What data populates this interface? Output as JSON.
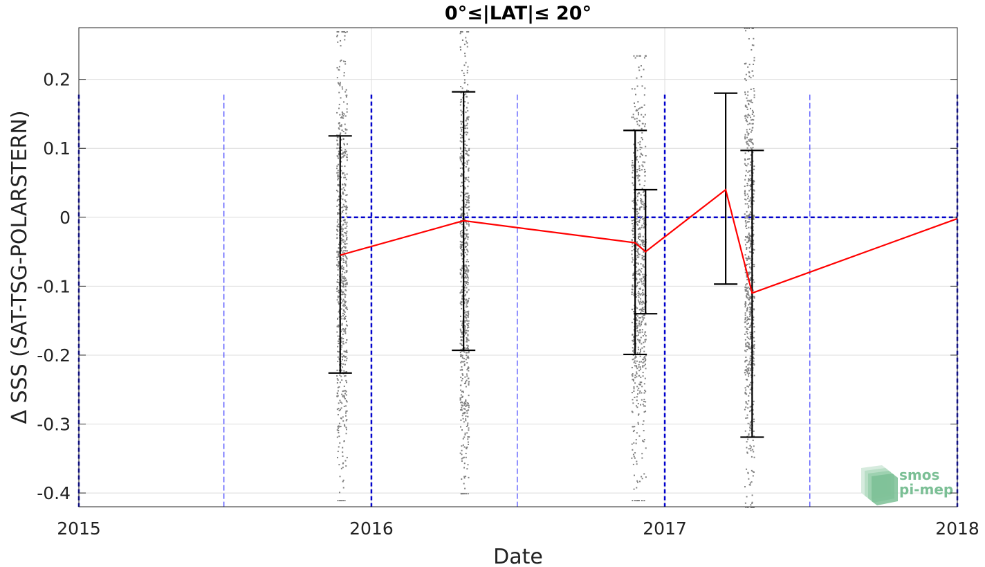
{
  "chart_data": {
    "type": "scatter",
    "title": "0°≤|LAT|≤ 20°",
    "xlabel": "Date",
    "ylabel": "Δ SSS (SAT-TSG-POLARSTERN)",
    "xlim": [
      "2015-01-01",
      "2018-01-01"
    ],
    "ylim": [
      -0.42,
      0.275
    ],
    "x_ticks": [
      "2015",
      "2016",
      "2017",
      "2018"
    ],
    "y_ticks": [
      "0.2",
      "0.1",
      "0",
      "-0.1",
      "-0.2",
      "-0.3",
      "-0.4"
    ],
    "grid": true,
    "mean_line": {
      "color": "#ff0000",
      "points": [
        {
          "x": "2015-11-23",
          "y": -0.055
        },
        {
          "x": "2016-04-25",
          "y": -0.005
        },
        {
          "x": "2016-11-25",
          "y": -0.037
        },
        {
          "x": "2016-12-08",
          "y": -0.05
        },
        {
          "x": "2017-03-18",
          "y": 0.04
        },
        {
          "x": "2017-04-20",
          "y": -0.11
        },
        {
          "x": "2018-01-01",
          "y": -0.002
        }
      ]
    },
    "error_bars": {
      "color": "#000000",
      "bars": [
        {
          "x": "2015-11-23",
          "low": -0.226,
          "high": 0.118
        },
        {
          "x": "2016-04-25",
          "low": -0.193,
          "high": 0.182
        },
        {
          "x": "2016-11-25",
          "low": -0.199,
          "high": 0.126
        },
        {
          "x": "2016-12-08",
          "low": -0.14,
          "high": 0.04
        },
        {
          "x": "2017-03-18",
          "low": -0.097,
          "high": 0.18
        },
        {
          "x": "2017-04-20",
          "low": -0.319,
          "high": 0.097
        }
      ]
    },
    "scatter_clusters": {
      "color": "#808080",
      "clusters": [
        {
          "x_start": "2015-11-18",
          "x_end": "2015-12-01",
          "y_min": -0.41,
          "y_max": 0.27
        },
        {
          "x_start": "2016-04-20",
          "x_end": "2016-05-01",
          "y_min": -0.4,
          "y_max": 0.27
        },
        {
          "x_start": "2016-11-20",
          "x_end": "2016-12-08",
          "y_min": -0.41,
          "y_max": 0.235
        },
        {
          "x_start": "2017-04-10",
          "x_end": "2017-04-22",
          "y_min": -0.42,
          "y_max": 0.275
        }
      ]
    },
    "zero_line": {
      "y": 0,
      "x_start": "2015-11-23",
      "x_end": "2018-01-01",
      "color": "#0000cc"
    },
    "year_lines": {
      "color": "#0000cc",
      "x": [
        "2015-01-01",
        "2016-01-01",
        "2017-01-01",
        "2018-01-01"
      ]
    },
    "half_year_lines": {
      "color": "#3b3bff",
      "x": [
        "2015-07-01",
        "2016-07-01",
        "2017-07-01"
      ]
    },
    "watermark": {
      "lines": [
        "smos",
        "pi-mep"
      ],
      "color": "#7bbf95"
    }
  }
}
